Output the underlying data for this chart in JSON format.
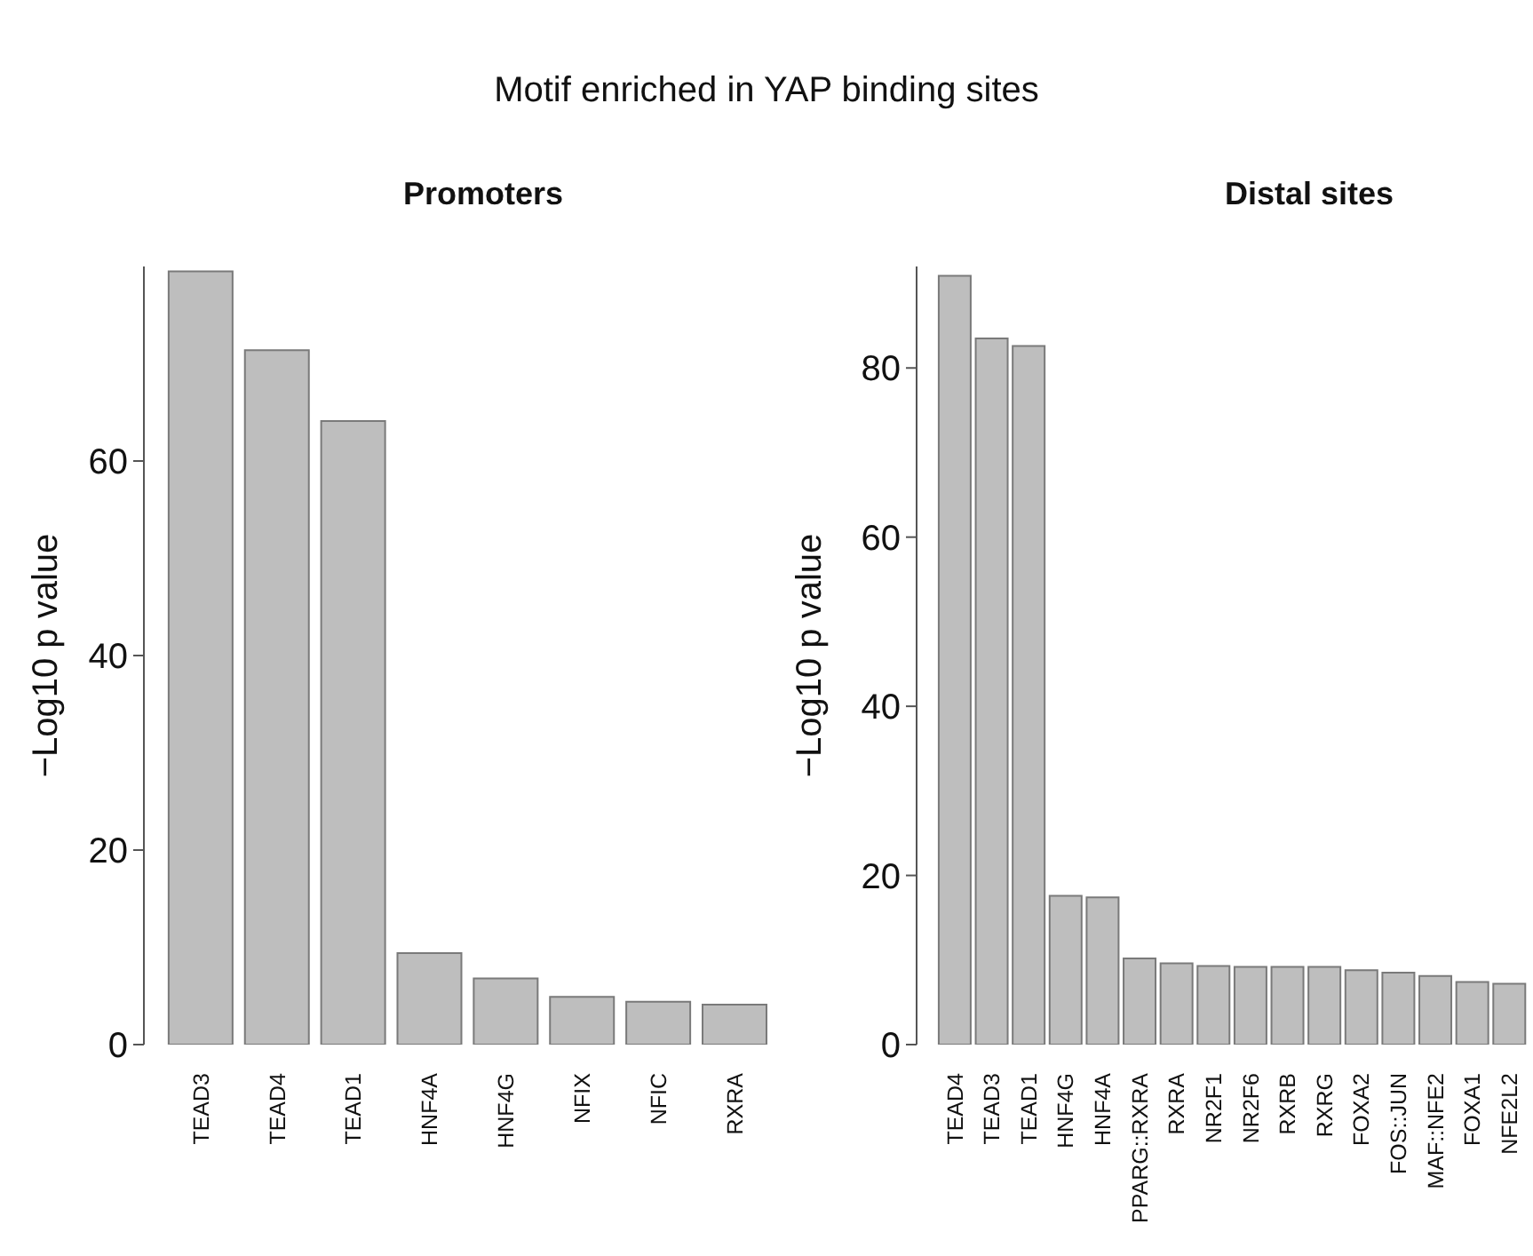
{
  "chart_data": [
    {
      "type": "bar",
      "title": "Motif enriched in YAP binding sites",
      "subtitle": "Promoters",
      "ylabel": "−Log10 p value",
      "categories": [
        "TEAD3",
        "TEAD4",
        "TEAD1",
        "HNF4A",
        "HNF4G",
        "NFIX",
        "NFIC",
        "RXRA"
      ],
      "values": [
        79.5,
        71.4,
        64.1,
        9.4,
        6.8,
        4.9,
        4.4,
        4.1
      ],
      "color": "#bebebe",
      "ylim": [
        0,
        80
      ],
      "yticks": [
        0,
        20,
        40,
        60
      ]
    },
    {
      "type": "bar",
      "subtitle": "Distal sites",
      "ylabel": "−Log10 p value",
      "categories": [
        "TEAD4",
        "TEAD3",
        "TEAD1",
        "HNF4G",
        "HNF4A",
        "PPARG::RXRA",
        "RXRA",
        "NR2F1",
        "NR2F6",
        "RXRB",
        "RXRG",
        "FOXA2",
        "FOS::JUN",
        "MAF::NFE2",
        "FOXA1",
        "NFE2L2"
      ],
      "values": [
        90.9,
        83.5,
        82.6,
        17.6,
        17.4,
        10.2,
        9.6,
        9.3,
        9.2,
        9.2,
        9.2,
        8.8,
        8.5,
        8.1,
        7.4,
        7.2
      ],
      "color": "#bebebe",
      "ylim": [
        0,
        92
      ],
      "yticks": [
        0,
        20,
        40,
        60,
        80
      ]
    }
  ]
}
